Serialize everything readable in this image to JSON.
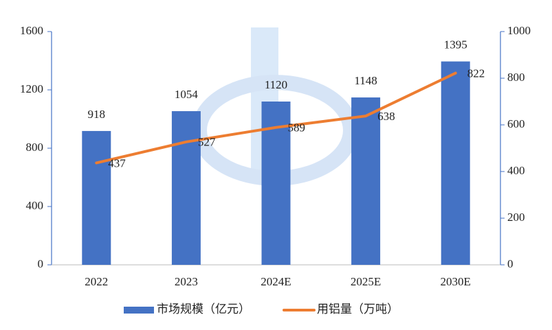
{
  "chart_data": {
    "type": "bar",
    "categories": [
      "2022",
      "2023",
      "2024E",
      "2025E",
      "2030E"
    ],
    "series": [
      {
        "name": "市场规模（亿元）",
        "color": "#4472c4",
        "values": [
          918,
          1054,
          1120,
          1148,
          1395
        ]
      },
      {
        "name": "用铝量（万吨）",
        "color": "#ed7d31",
        "type": "line",
        "axis": "y2",
        "values": [
          437,
          527,
          589,
          638,
          822
        ]
      }
    ],
    "ylim": [
      0,
      1600
    ],
    "yticks": [
      0,
      400,
      800,
      1200,
      1600
    ],
    "y2lim": [
      0,
      1000
    ],
    "y2ticks": [
      0,
      200,
      400,
      600,
      800,
      1000
    ],
    "legend": "bottom"
  }
}
